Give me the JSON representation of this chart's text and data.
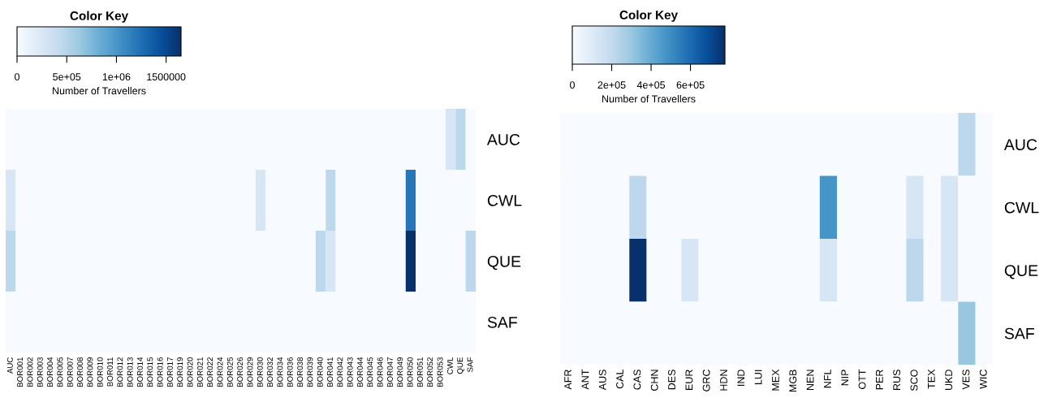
{
  "chart_data": [
    {
      "type": "heatmap",
      "legend_title": "Color Key",
      "clabel": "Number of Travellers",
      "categories": [
        "AUC",
        "BOR001",
        "BOR002",
        "BOR003",
        "BOR004",
        "BOR005",
        "BOR007",
        "BOR008",
        "BOR009",
        "BOR010",
        "BOR011",
        "BOR012",
        "BOR013",
        "BOR014",
        "BOR015",
        "BOR016",
        "BOR017",
        "BOR019",
        "BOR020",
        "BOR021",
        "BOR022",
        "BOR024",
        "BOR025",
        "BOR026",
        "BOR029",
        "BOR030",
        "BOR032",
        "BOR034",
        "BOR036",
        "BOR038",
        "BOR039",
        "BOR040",
        "BOR041",
        "BOR042",
        "BOR043",
        "BOR044",
        "BOR045",
        "BOR046",
        "BOR047",
        "BOR049",
        "BOR050",
        "BOR051",
        "BOR052",
        "BOR053",
        "CWL",
        "QUE",
        "SAF"
      ],
      "y_categories": [
        "AUC",
        "CWL",
        "QUE",
        "SAF"
      ],
      "cells": [
        [
          0,
          0,
          0,
          0,
          0,
          0,
          0,
          0,
          0,
          0,
          0,
          0,
          0,
          0,
          0,
          0,
          0,
          0,
          0,
          0,
          0,
          0,
          0,
          0,
          0,
          0,
          0,
          0,
          0,
          0,
          0,
          0,
          0,
          0,
          0,
          0,
          0,
          0,
          0,
          0,
          0,
          0,
          0,
          0,
          275000,
          460000,
          0
        ],
        [
          275000,
          0,
          0,
          0,
          0,
          0,
          0,
          0,
          0,
          0,
          0,
          0,
          0,
          0,
          0,
          0,
          0,
          0,
          0,
          0,
          0,
          0,
          0,
          0,
          0,
          275000,
          0,
          0,
          0,
          0,
          0,
          0,
          460000,
          0,
          0,
          0,
          0,
          0,
          0,
          0,
          1200000,
          0,
          0,
          0,
          0,
          0,
          0
        ],
        [
          460000,
          0,
          0,
          0,
          0,
          0,
          0,
          0,
          0,
          0,
          0,
          0,
          0,
          0,
          0,
          0,
          0,
          0,
          0,
          0,
          0,
          0,
          0,
          0,
          0,
          0,
          0,
          0,
          0,
          0,
          0,
          460000,
          275000,
          0,
          0,
          0,
          0,
          0,
          0,
          0,
          1650000,
          0,
          0,
          0,
          0,
          0,
          460000
        ],
        [
          0,
          0,
          0,
          0,
          0,
          0,
          0,
          0,
          0,
          0,
          0,
          0,
          0,
          0,
          0,
          0,
          0,
          0,
          0,
          0,
          0,
          0,
          0,
          0,
          0,
          0,
          0,
          0,
          0,
          0,
          0,
          0,
          0,
          0,
          0,
          0,
          0,
          0,
          0,
          0,
          0,
          0,
          0,
          0,
          0,
          0,
          0
        ]
      ],
      "colors": [
        "#f7fbff",
        "#deebf7",
        "#c6dbef",
        "#9ecae1",
        "#6baed6",
        "#4292c6",
        "#2171b5",
        "#08519c",
        "#08306b"
      ],
      "clim": [
        0,
        1650000
      ],
      "cticks": [
        0,
        {
          "value": 500000,
          "label": "5e+05"
        },
        {
          "value": 1000000,
          "label": "1e+06"
        },
        1500000
      ]
    },
    {
      "type": "heatmap",
      "legend_title": "Color Key",
      "clabel": "Number of Travellers",
      "categories": [
        "AFR",
        "ANT",
        "AUS",
        "CAL",
        "CAS",
        "CHN",
        "DES",
        "EUR",
        "GRC",
        "HDN",
        "IND",
        "LUI",
        "MEX",
        "MGB",
        "NEN",
        "NFL",
        "NIP",
        "OTT",
        "PER",
        "RUS",
        "SCO",
        "TEX",
        "UKD",
        "VES",
        "WIC"
      ],
      "y_categories": [
        "AUC",
        "CWL",
        "QUE",
        "SAF"
      ],
      "cells": [
        [
          0,
          0,
          0,
          0,
          0,
          0,
          0,
          0,
          0,
          0,
          0,
          0,
          0,
          0,
          0,
          0,
          0,
          0,
          0,
          0,
          0,
          0,
          0,
          215000,
          0
        ],
        [
          0,
          0,
          0,
          0,
          215000,
          0,
          0,
          0,
          0,
          0,
          0,
          0,
          0,
          0,
          0,
          475000,
          0,
          0,
          0,
          0,
          130000,
          0,
          130000,
          0,
          0
        ],
        [
          0,
          0,
          0,
          0,
          775000,
          0,
          0,
          130000,
          0,
          0,
          0,
          0,
          0,
          0,
          0,
          130000,
          0,
          0,
          0,
          0,
          215000,
          0,
          130000,
          0,
          0
        ],
        [
          0,
          0,
          0,
          0,
          0,
          0,
          0,
          0,
          0,
          0,
          0,
          0,
          0,
          0,
          0,
          0,
          0,
          0,
          0,
          0,
          0,
          0,
          0,
          300000,
          0
        ]
      ],
      "colors": [
        "#f7fbff",
        "#deebf7",
        "#c6dbef",
        "#9ecae1",
        "#6baed6",
        "#4292c6",
        "#2171b5",
        "#08519c",
        "#08306b"
      ],
      "clim": [
        0,
        775000
      ],
      "cticks": [
        0,
        {
          "value": 200000,
          "label": "2e+05"
        },
        {
          "value": 400000,
          "label": "4e+05"
        },
        {
          "value": 600000,
          "label": "6e+05"
        }
      ]
    }
  ]
}
